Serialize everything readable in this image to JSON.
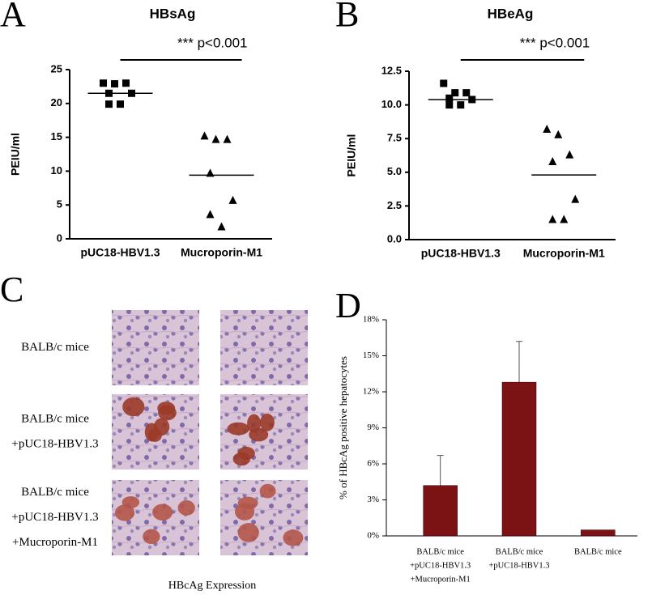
{
  "chart_data": [
    {
      "type": "scatter",
      "panel": "A",
      "title": "HBsAg",
      "ylabel": "PEIU/ml",
      "annotation": "*** p<0.001",
      "categories": [
        "pUC18-HBV1.3",
        "Mucroporin-M1"
      ],
      "series": [
        {
          "marker": "square",
          "color": "#000000",
          "values": [
            23.0,
            22.9,
            23.0,
            21.5,
            21.5,
            19.9,
            19.9
          ]
        },
        {
          "marker": "triangle",
          "color": "#000000",
          "values": [
            15.2,
            14.7,
            14.7,
            9.7,
            5.7,
            3.6,
            1.8
          ]
        }
      ],
      "means": [
        21.5,
        9.4
      ],
      "ylim": [
        0,
        25
      ],
      "yticks": [
        0,
        5,
        10,
        15,
        20,
        25
      ]
    },
    {
      "type": "scatter",
      "panel": "B",
      "title": "HBeAg",
      "ylabel": "PEIU/ml",
      "annotation": "*** p<0.001",
      "categories": [
        "pUC18-HBV1.3",
        "Mucroporin-M1"
      ],
      "series": [
        {
          "marker": "square",
          "color": "#000000",
          "values": [
            11.6,
            10.9,
            10.9,
            10.5,
            10.4,
            10.0,
            10.0
          ]
        },
        {
          "marker": "triangle",
          "color": "#000000",
          "values": [
            8.2,
            7.8,
            6.3,
            5.8,
            3.0,
            1.5,
            1.5
          ]
        }
      ],
      "means": [
        10.4,
        4.8
      ],
      "ylim": [
        0,
        12.5
      ],
      "yticks": [
        {
          "value": 0,
          "label": "0.0"
        },
        2.5,
        {
          "value": 5,
          "label": "5.0"
        },
        7.5,
        {
          "value": 10,
          "label": "10.0"
        },
        12.5
      ]
    },
    {
      "type": "bar",
      "panel": "D",
      "ylabel": "% of HBcAg positive hepatocytes",
      "categories": [
        [
          "BALB/c mice",
          "+pUC18-HBV1.3",
          "+Mucroporin-M1"
        ],
        [
          "BALB/c mice",
          "+pUC18-HBV1.3"
        ],
        [
          "BALB/c mice"
        ]
      ],
      "values": [
        4.2,
        12.8,
        0.5
      ],
      "errors": [
        2.5,
        3.4,
        null
      ],
      "color": "#7b1214",
      "ylim": [
        0,
        18
      ],
      "yticks": [
        {
          "value": 0,
          "label": "0%"
        },
        {
          "value": 3,
          "label": "3%"
        },
        {
          "value": 6,
          "label": "6%"
        },
        {
          "value": 9,
          "label": "9%"
        },
        {
          "value": 12,
          "label": "12%"
        },
        {
          "value": 15,
          "label": "15%"
        },
        {
          "value": 18,
          "label": "18%"
        }
      ]
    }
  ],
  "panel_c": {
    "panel": "C",
    "rows": [
      [
        "BALB/c mice"
      ],
      [
        "BALB/c mice",
        "+pUC18-HBV1.3"
      ],
      [
        "BALB/c mice",
        "+pUC18-HBV1.3",
        "+Mucroporin-M1"
      ]
    ],
    "caption": "HBcAg Expression"
  }
}
